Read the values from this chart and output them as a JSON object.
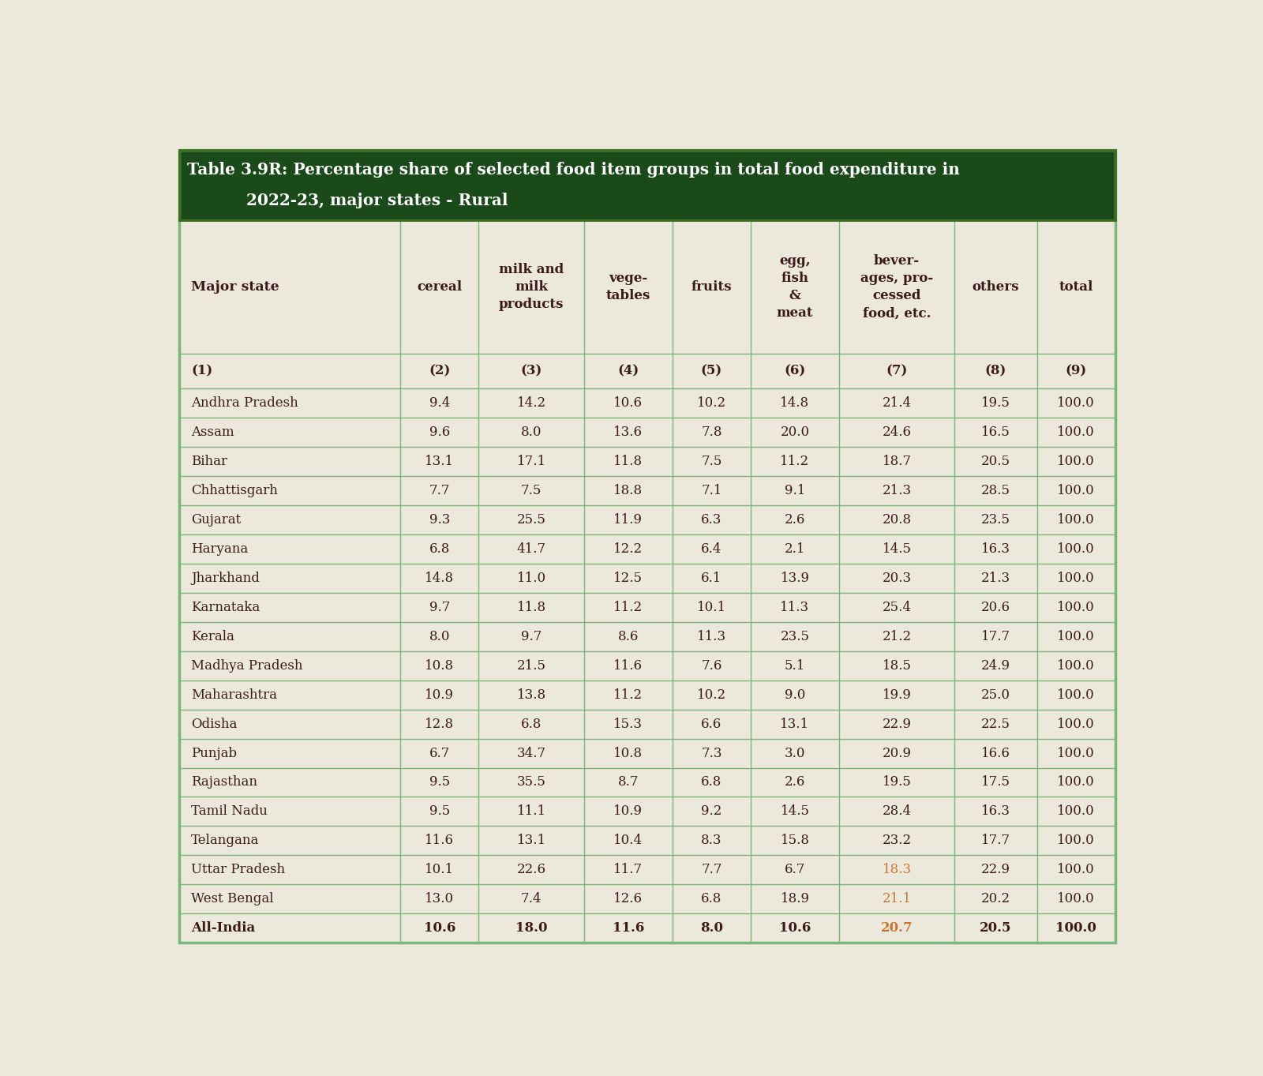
{
  "title_line1": "Table 3.9R: Percentage share of selected food item groups in total food expenditure in",
  "title_line2": "2022-23, major states - Rural",
  "title_bg": "#1a4a1a",
  "title_text_color": "#ffffff",
  "table_bg": "#ede8dc",
  "header_text_color": "#3b1a1a",
  "data_text_color": "#3b1a1a",
  "grid_color": "#7ab87a",
  "col_headers": [
    "Major state",
    "cereal",
    "milk and\nmilk\nproducts",
    "vege-\ntables",
    "fruits",
    "egg,\nfish\n&\nmeat",
    "bever-\nages, pro-\ncessed\nfood, etc.",
    "others",
    "total"
  ],
  "col_numbers": [
    "(1)",
    "(2)",
    "(3)",
    "(4)",
    "(5)",
    "(6)",
    "(7)",
    "(8)",
    "(9)"
  ],
  "rows": [
    [
      "Andhra Pradesh",
      "9.4",
      "14.2",
      "10.6",
      "10.2",
      "14.8",
      "21.4",
      "19.5",
      "100.0"
    ],
    [
      "Assam",
      "9.6",
      "8.0",
      "13.6",
      "7.8",
      "20.0",
      "24.6",
      "16.5",
      "100.0"
    ],
    [
      "Bihar",
      "13.1",
      "17.1",
      "11.8",
      "7.5",
      "11.2",
      "18.7",
      "20.5",
      "100.0"
    ],
    [
      "Chhattisgarh",
      "7.7",
      "7.5",
      "18.8",
      "7.1",
      "9.1",
      "21.3",
      "28.5",
      "100.0"
    ],
    [
      "Gujarat",
      "9.3",
      "25.5",
      "11.9",
      "6.3",
      "2.6",
      "20.8",
      "23.5",
      "100.0"
    ],
    [
      "Haryana",
      "6.8",
      "41.7",
      "12.2",
      "6.4",
      "2.1",
      "14.5",
      "16.3",
      "100.0"
    ],
    [
      "Jharkhand",
      "14.8",
      "11.0",
      "12.5",
      "6.1",
      "13.9",
      "20.3",
      "21.3",
      "100.0"
    ],
    [
      "Karnataka",
      "9.7",
      "11.8",
      "11.2",
      "10.1",
      "11.3",
      "25.4",
      "20.6",
      "100.0"
    ],
    [
      "Kerala",
      "8.0",
      "9.7",
      "8.6",
      "11.3",
      "23.5",
      "21.2",
      "17.7",
      "100.0"
    ],
    [
      "Madhya Pradesh",
      "10.8",
      "21.5",
      "11.6",
      "7.6",
      "5.1",
      "18.5",
      "24.9",
      "100.0"
    ],
    [
      "Maharashtra",
      "10.9",
      "13.8",
      "11.2",
      "10.2",
      "9.0",
      "19.9",
      "25.0",
      "100.0"
    ],
    [
      "Odisha",
      "12.8",
      "6.8",
      "15.3",
      "6.6",
      "13.1",
      "22.9",
      "22.5",
      "100.0"
    ],
    [
      "Punjab",
      "6.7",
      "34.7",
      "10.8",
      "7.3",
      "3.0",
      "20.9",
      "16.6",
      "100.0"
    ],
    [
      "Rajasthan",
      "9.5",
      "35.5",
      "8.7",
      "6.8",
      "2.6",
      "19.5",
      "17.5",
      "100.0"
    ],
    [
      "Tamil Nadu",
      "9.5",
      "11.1",
      "10.9",
      "9.2",
      "14.5",
      "28.4",
      "16.3",
      "100.0"
    ],
    [
      "Telangana",
      "11.6",
      "13.1",
      "10.4",
      "8.3",
      "15.8",
      "23.2",
      "17.7",
      "100.0"
    ],
    [
      "Uttar Pradesh",
      "10.1",
      "22.6",
      "11.7",
      "7.7",
      "6.7",
      "18.3",
      "22.9",
      "100.0"
    ],
    [
      "West Bengal",
      "13.0",
      "7.4",
      "12.6",
      "6.8",
      "18.9",
      "21.1",
      "20.2",
      "100.0"
    ],
    [
      "All-India",
      "10.6",
      "18.0",
      "11.6",
      "8.0",
      "10.6",
      "20.7",
      "20.5",
      "100.0"
    ]
  ],
  "orange_rows_cols": [
    [
      17,
      6
    ],
    [
      18,
      6
    ],
    [
      16,
      6
    ]
  ],
  "orange_color": "#c87533",
  "figsize": [
    16.0,
    13.63
  ],
  "dpi": 100,
  "col_widths_rel": [
    2.2,
    0.78,
    1.05,
    0.88,
    0.78,
    0.88,
    1.15,
    0.82,
    0.78
  ]
}
